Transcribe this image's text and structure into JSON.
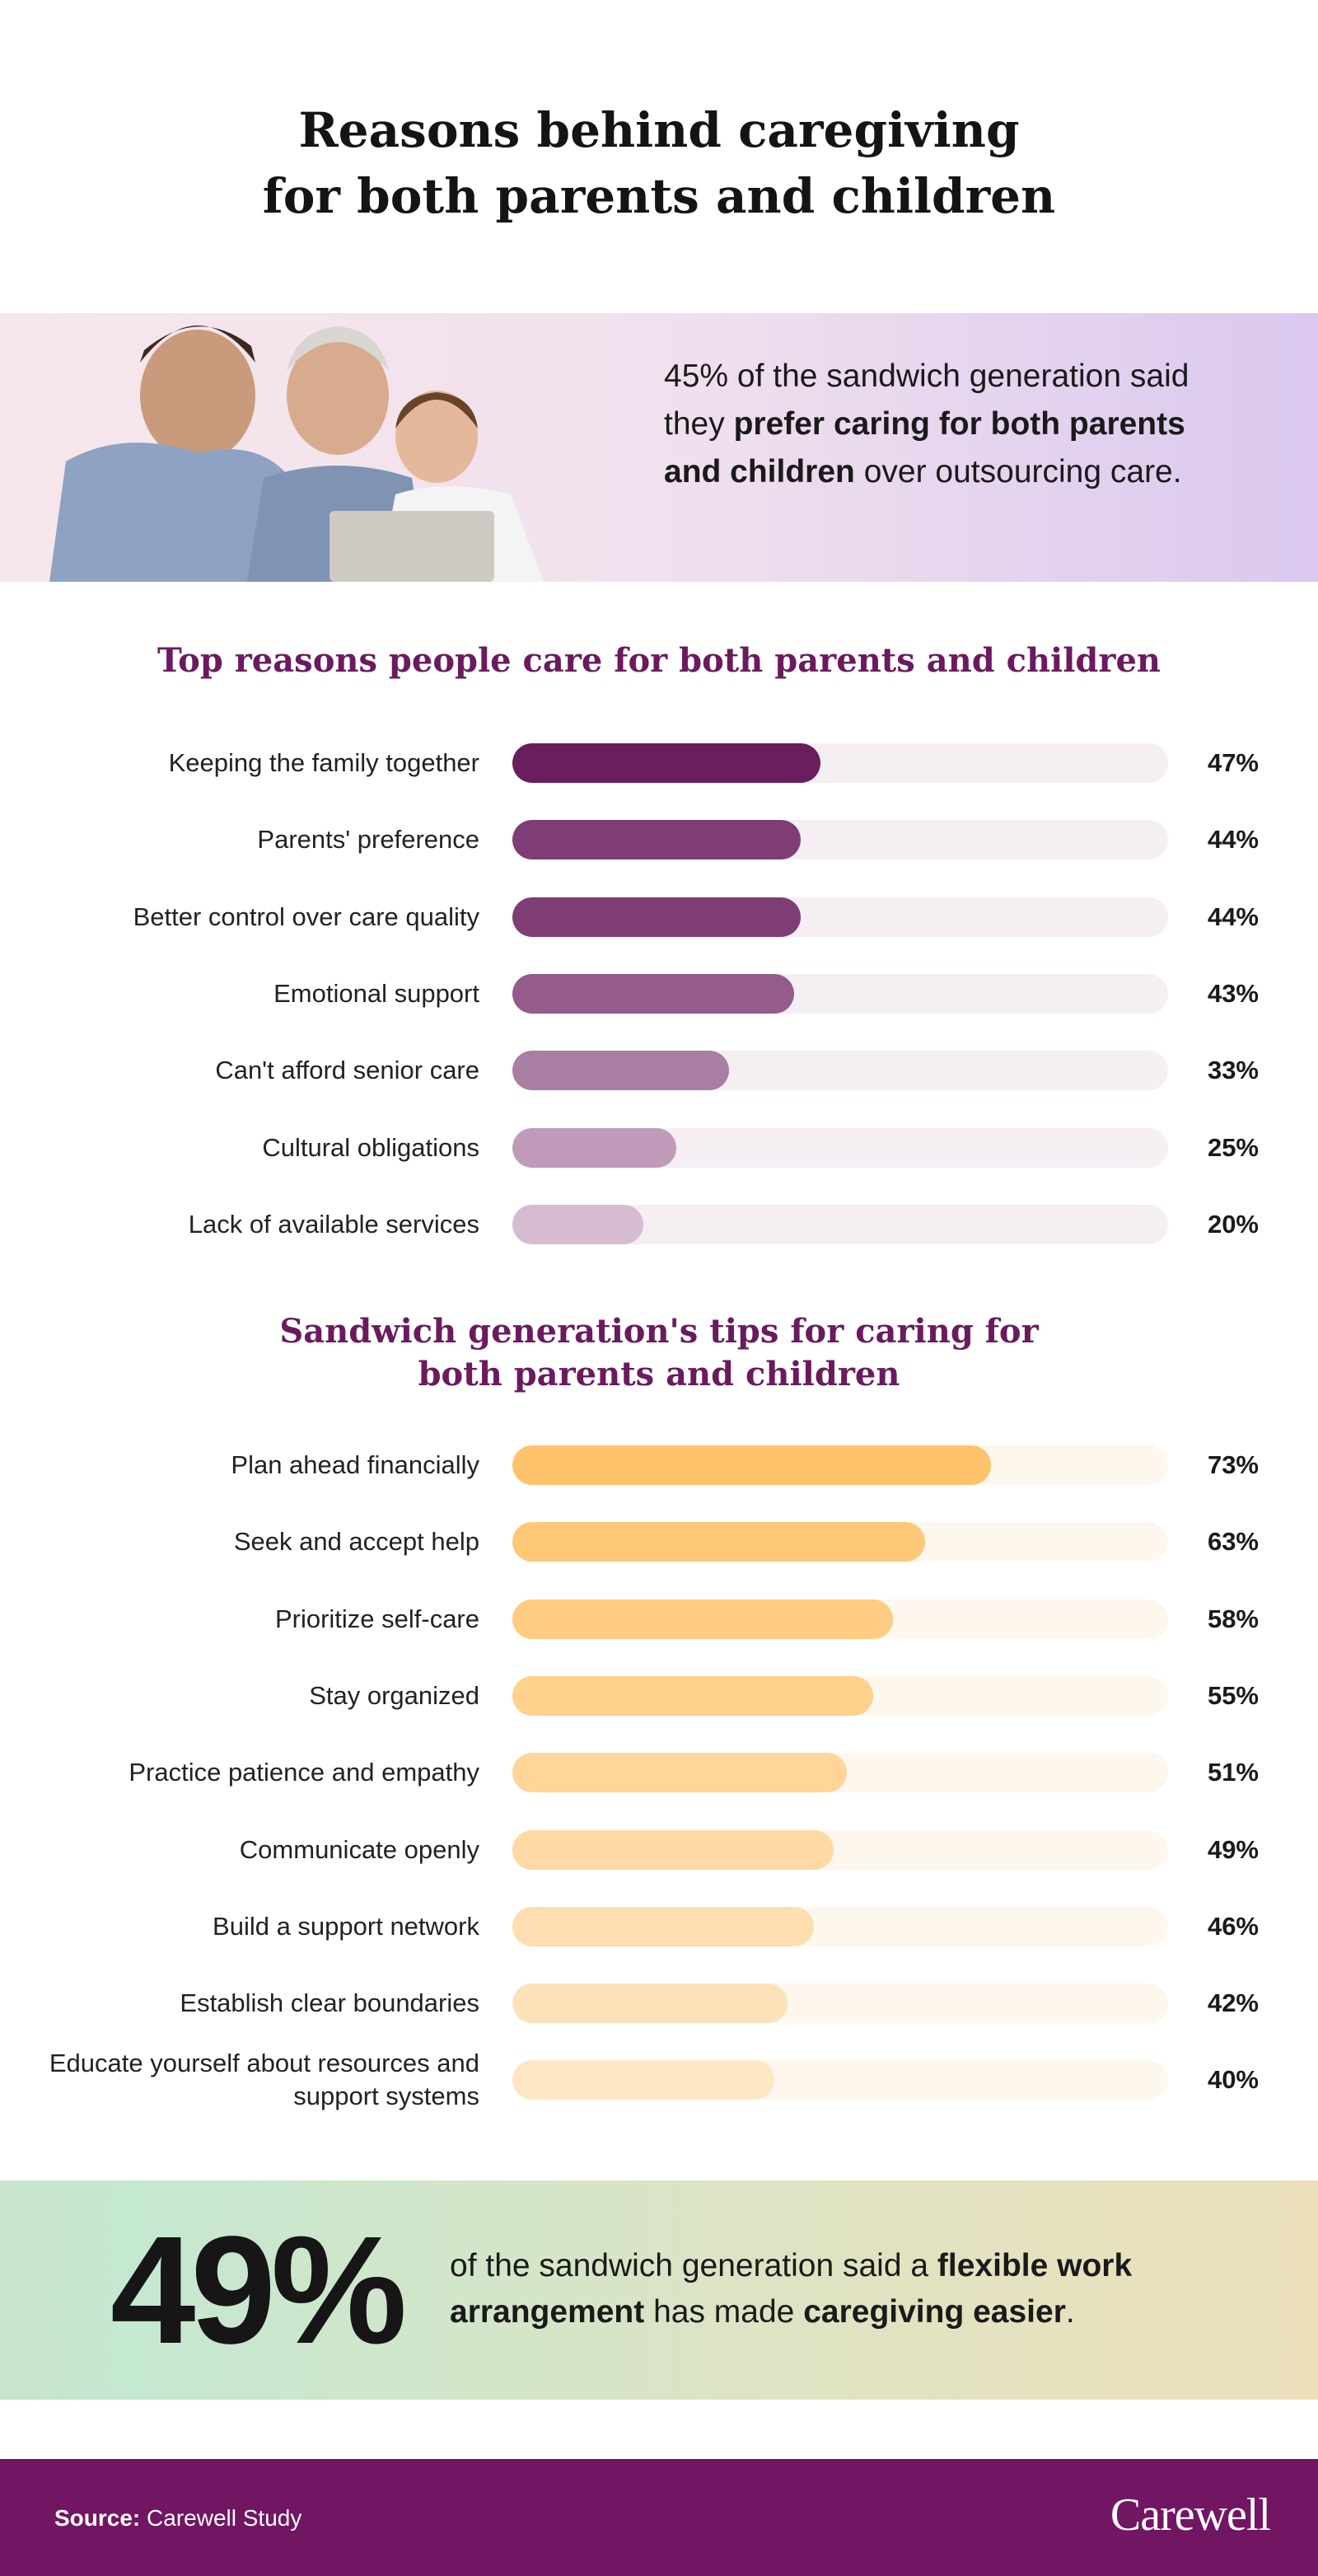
{
  "title": {
    "line1": "Reasons behind caregiving",
    "line2": "for both parents and children"
  },
  "hero": {
    "text_before": "45% of the sandwich generation said they ",
    "text_bold": "prefer caring for both parents and children",
    "text_after": " over outsourcing care."
  },
  "chart_data": [
    {
      "type": "bar",
      "orientation": "horizontal",
      "title": "Top reasons people care for both parents and children",
      "categories": [
        "Keeping the family together",
        "Parents' preference",
        "Better control over care quality",
        "Emotional support",
        "Can't afford senior care",
        "Cultural obligations",
        "Lack of available services"
      ],
      "values": [
        47,
        44,
        44,
        43,
        33,
        25,
        20
      ],
      "labels": [
        "47%",
        "44%",
        "44%",
        "43%",
        "33%",
        "25%",
        "20%"
      ],
      "xlim": [
        0,
        100
      ],
      "colors": [
        "#6a1e5e",
        "#7e3d74",
        "#7e3d74",
        "#945b8c",
        "#a87ea2",
        "#bf9bb9",
        "#d5bcd0"
      ],
      "track_color": "#f5eef3"
    },
    {
      "type": "bar",
      "orientation": "horizontal",
      "title": "Sandwich generation's tips for caring for both parents and children",
      "categories": [
        "Plan ahead financially",
        "Seek and accept help",
        "Prioritize self-care",
        "Stay organized",
        "Practice patience and empathy",
        "Communicate openly",
        "Build a support network",
        "Establish clear boundaries",
        "Educate yourself about resources and support systems"
      ],
      "values": [
        73,
        63,
        58,
        55,
        51,
        49,
        46,
        42,
        40
      ],
      "labels": [
        "73%",
        "63%",
        "58%",
        "55%",
        "51%",
        "49%",
        "46%",
        "42%",
        "40%"
      ],
      "xlim": [
        0,
        100
      ],
      "colors": [
        "#ffc36b",
        "#ffc877",
        "#ffcc82",
        "#ffd18d",
        "#ffd598",
        "#fed9a3",
        "#fedeae",
        "#fde2b9",
        "#fde6c3"
      ],
      "track_color": "#fdf7ee"
    }
  ],
  "stat": {
    "big": "49%",
    "t1": "of the sandwich generation said a ",
    "b1": "flexible work arrangement",
    "t2": " has made ",
    "b2": "caregiving easier",
    "t3": "."
  },
  "footer": {
    "source_label": "Source:",
    "source_value": " Carewell Study",
    "logo": "Carewell"
  }
}
